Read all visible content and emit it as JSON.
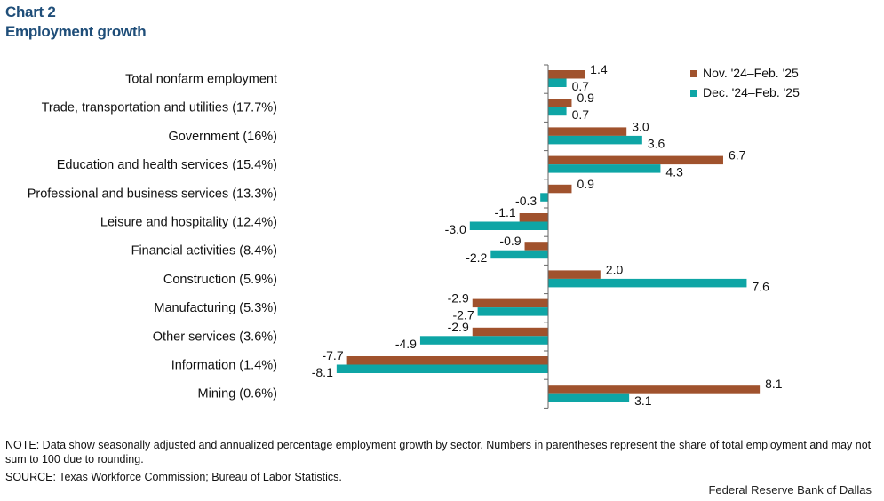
{
  "title_line1": "Chart 2",
  "title_line2": "Employment growth",
  "chart_data": {
    "type": "bar",
    "orientation": "horizontal",
    "xlim": [
      -8.5,
      8.5
    ],
    "categories": [
      "Total nonfarm employment",
      "Trade, transportation and utilities (17.7%)",
      "Government (16%)",
      "Education and health services (15.4%)",
      "Professional and business services (13.3%)",
      "Leisure and hospitality (12.4%)",
      "Financial activities (8.4%)",
      "Construction (5.9%)",
      "Manufacturing (5.3%)",
      "Other services (3.6%)",
      "Information (1.4%)",
      "Mining (0.6%)"
    ],
    "series": [
      {
        "name": "Nov. '24–Feb. '25",
        "color": "#a0522d",
        "values": [
          1.4,
          0.9,
          3.0,
          6.7,
          0.9,
          -1.1,
          -0.9,
          2.0,
          -2.9,
          -2.9,
          -7.7,
          8.1
        ],
        "labels": [
          "1.4",
          "0.9",
          "3.0",
          "6.7",
          "0.9",
          "-1.1",
          "-0.9",
          "2.0",
          "-2.9",
          "-2.9",
          "-7.7",
          "8.1"
        ]
      },
      {
        "name": "Dec. '24–Feb. '25",
        "color": "#0ea5a5",
        "values": [
          0.7,
          0.7,
          3.6,
          4.3,
          -0.3,
          -3.0,
          -2.2,
          7.6,
          -2.7,
          -4.9,
          -8.1,
          3.1
        ],
        "labels": [
          "0.7",
          "0.7",
          "3.6",
          "4.3",
          "-0.3",
          "-3.0",
          "-2.2",
          "7.6",
          "-2.7",
          "-4.9",
          "-8.1",
          "3.1"
        ]
      }
    ]
  },
  "note": "NOTE: Data show seasonally adjusted and annualized percentage employment growth by sector. Numbers in parentheses represent the share of total employment and may not sum to 100 due to rounding.",
  "source": "SOURCE: Texas Workforce Commission; Bureau of Labor Statistics.",
  "credit": "Federal Reserve Bank of Dallas"
}
